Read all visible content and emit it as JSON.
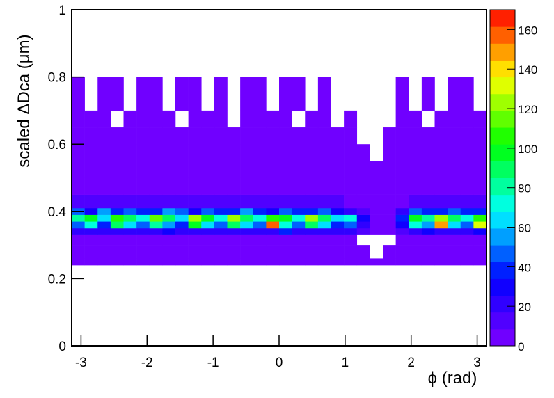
{
  "chart_data": {
    "type": "heatmap",
    "xlabel": "ϕ (rad)",
    "ylabel": "scaled ΔDca (μm)",
    "xlim": [
      -3.1416,
      3.1416
    ],
    "xticks": [
      -3,
      -2,
      -1,
      0,
      1,
      2,
      3
    ],
    "ylim": [
      0,
      1
    ],
    "yticks": [
      0,
      0.2,
      0.4,
      0.6,
      0.8,
      1
    ],
    "zlim": [
      0,
      170
    ],
    "zticks": [
      0,
      20,
      40,
      60,
      80,
      100,
      120,
      140,
      160
    ],
    "color_stops": [
      "#8000ff",
      "#0000ff",
      "#00ffff",
      "#00ff00",
      "#ffff00",
      "#ff0000"
    ],
    "x_bins": [
      -3.1416,
      -2.9452,
      -2.7489,
      -2.5525,
      -2.3562,
      -2.1598,
      -1.9635,
      -1.7671,
      -1.5708,
      -1.3744,
      -1.1781,
      -0.9817,
      -0.7854,
      -0.589,
      -0.3927,
      -0.1963,
      0,
      0.1963,
      0.3927,
      0.589,
      0.7854,
      0.9817,
      1.1781,
      1.3744,
      1.5708,
      1.7671,
      1.9635,
      2.1598,
      2.3562,
      2.5525,
      2.7489,
      2.9452,
      3.1416
    ],
    "y_bins": [
      0.24,
      0.26,
      0.3,
      0.33,
      0.35,
      0.37,
      0.39,
      0.41,
      0.45,
      0.5,
      0.55,
      0.6,
      0.65,
      0.7,
      0.8
    ],
    "z": [
      [
        5,
        5,
        5,
        5,
        5,
        5,
        5,
        5,
        5,
        5,
        5,
        5,
        5,
        5,
        5,
        5,
        5,
        5,
        5,
        5,
        5,
        5,
        5,
        2,
        3,
        5,
        5,
        5,
        5,
        5,
        5,
        5
      ],
      [
        2,
        1,
        2,
        2,
        1,
        2,
        2,
        1,
        2,
        2,
        1,
        2,
        2,
        1,
        2,
        2,
        1,
        2,
        2,
        1,
        2,
        1,
        1,
        0,
        1,
        2,
        1,
        2,
        2,
        1,
        2,
        2
      ],
      [
        2,
        2,
        1,
        2,
        2,
        1,
        2,
        2,
        1,
        2,
        2,
        1,
        2,
        2,
        1,
        2,
        2,
        1,
        2,
        2,
        1,
        1,
        0,
        0,
        0,
        1,
        2,
        2,
        1,
        2,
        2,
        2
      ],
      [
        18,
        22,
        20,
        25,
        18,
        22,
        20,
        30,
        18,
        22,
        25,
        20,
        18,
        24,
        20,
        22,
        35,
        18,
        22,
        20,
        25,
        18,
        10,
        3,
        2,
        15,
        22,
        30,
        20,
        25,
        22,
        28
      ],
      [
        50,
        70,
        40,
        90,
        60,
        45,
        80,
        55,
        40,
        95,
        65,
        50,
        85,
        60,
        45,
        160,
        70,
        50,
        90,
        60,
        40,
        50,
        20,
        4,
        3,
        30,
        70,
        55,
        150,
        60,
        45,
        130
      ],
      [
        80,
        100,
        60,
        110,
        85,
        70,
        115,
        90,
        65,
        120,
        95,
        75,
        120,
        90,
        70,
        110,
        95,
        75,
        125,
        90,
        60,
        70,
        30,
        5,
        4,
        40,
        95,
        80,
        120,
        90,
        75,
        110
      ],
      [
        45,
        30,
        55,
        35,
        50,
        40,
        35,
        55,
        45,
        30,
        50,
        40,
        35,
        55,
        40,
        30,
        50,
        40,
        35,
        45,
        30,
        25,
        12,
        4,
        3,
        20,
        45,
        35,
        40,
        50,
        35,
        40
      ],
      [
        12,
        10,
        12,
        11,
        12,
        10,
        12,
        11,
        12,
        10,
        12,
        11,
        12,
        10,
        12,
        11,
        12,
        10,
        12,
        11,
        10,
        8,
        5,
        3,
        3,
        6,
        10,
        12,
        11,
        12,
        10,
        12
      ],
      [
        7,
        6,
        7,
        6,
        7,
        6,
        7,
        6,
        7,
        6,
        7,
        6,
        7,
        6,
        7,
        6,
        7,
        6,
        7,
        6,
        6,
        5,
        3,
        2,
        2,
        4,
        6,
        7,
        6,
        7,
        6,
        7
      ],
      [
        5,
        5,
        4,
        5,
        5,
        4,
        5,
        5,
        4,
        5,
        5,
        4,
        5,
        5,
        4,
        5,
        5,
        4,
        5,
        4,
        4,
        3,
        2,
        1,
        1,
        2,
        4,
        5,
        4,
        5,
        5,
        4
      ],
      [
        3,
        2,
        3,
        2,
        3,
        3,
        2,
        3,
        3,
        2,
        3,
        3,
        2,
        3,
        3,
        2,
        3,
        2,
        3,
        2,
        2,
        1,
        1,
        0,
        1,
        1,
        2,
        3,
        2,
        3,
        2,
        3
      ],
      [
        2,
        1,
        1,
        2,
        1,
        1,
        2,
        1,
        1,
        2,
        1,
        1,
        2,
        1,
        1,
        2,
        1,
        1,
        2,
        1,
        1,
        1,
        0,
        0,
        1,
        1,
        1,
        2,
        1,
        1,
        2,
        1
      ],
      [
        1,
        1,
        1,
        0,
        1,
        1,
        1,
        1,
        0,
        1,
        1,
        1,
        0,
        1,
        1,
        1,
        1,
        0,
        1,
        1,
        0,
        1,
        0,
        0,
        0,
        1,
        1,
        0,
        1,
        1,
        1,
        1
      ],
      [
        1,
        0,
        1,
        1,
        0,
        1,
        1,
        0,
        1,
        1,
        0,
        1,
        0,
        1,
        1,
        0,
        1,
        1,
        0,
        1,
        0,
        0,
        0,
        0,
        0,
        1,
        0,
        1,
        0,
        1,
        1,
        0
      ]
    ]
  }
}
